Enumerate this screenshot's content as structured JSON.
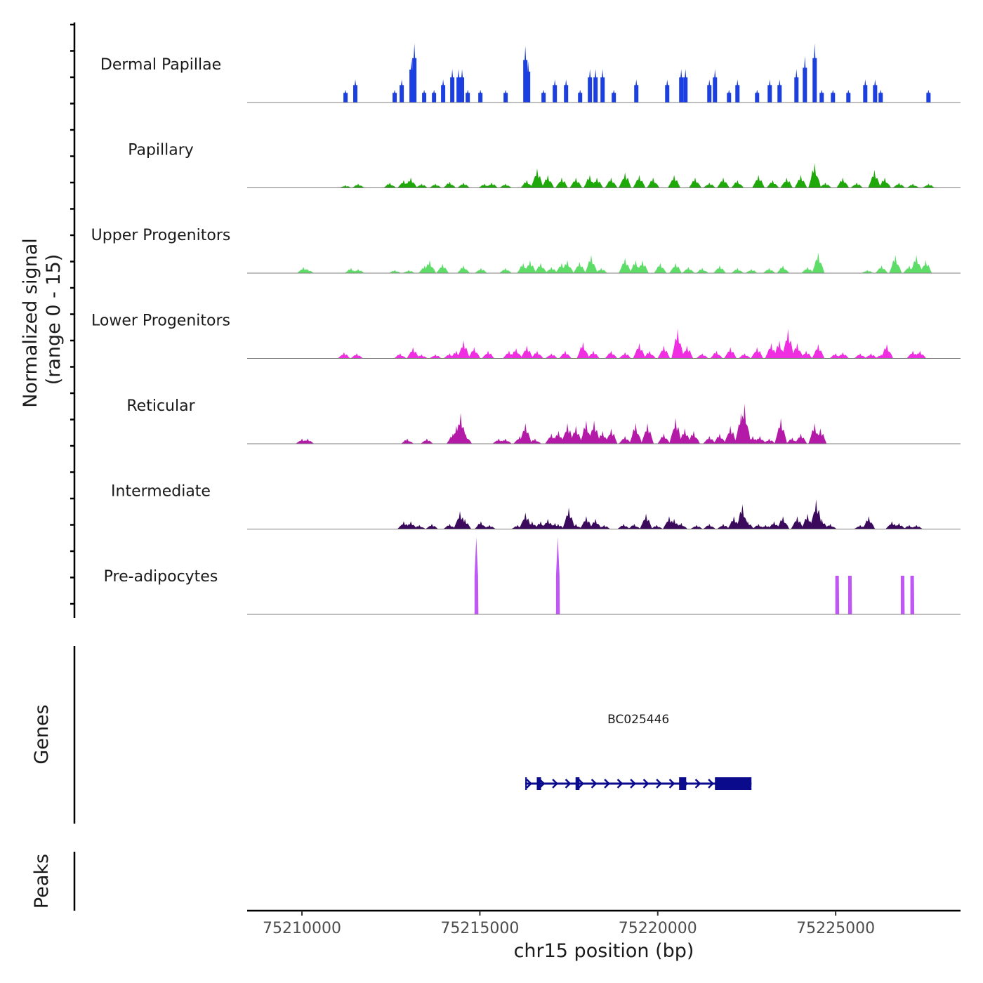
{
  "chart_data": {
    "type": "area",
    "title": "",
    "ylabel": "Normalized signal",
    "ylabel_sub": "(range 0 - 15)",
    "ylim": [
      0,
      15
    ],
    "xlabel": "chr15 position (bp)",
    "xlim": [
      75208460,
      75228510
    ],
    "xticks": [
      75210000,
      75215000,
      75220000,
      75225000
    ],
    "xtick_labels": [
      "75210000",
      "75215000",
      "75220000",
      "75225000"
    ],
    "peak_format": "each peak = [position_bp, signal]",
    "tracks": [
      {
        "name": "Dermal Papillae",
        "color": "#1b3fe0",
        "style": "block",
        "peaks": [
          [
            75211225,
            2.5
          ],
          [
            75211500,
            4.5
          ],
          [
            75212606,
            2.5
          ],
          [
            75212804,
            4.5
          ],
          [
            75213080,
            8.5
          ],
          [
            75213160,
            11.5
          ],
          [
            75213435,
            2.5
          ],
          [
            75213712,
            2.5
          ],
          [
            75213968,
            4.5
          ],
          [
            75214225,
            6.5
          ],
          [
            75214403,
            6.5
          ],
          [
            75214500,
            6.5
          ],
          [
            75214660,
            2.5
          ],
          [
            75215015,
            2.5
          ],
          [
            75215725,
            2.5
          ],
          [
            75216278,
            11
          ],
          [
            75216357,
            8
          ],
          [
            75216791,
            2.5
          ],
          [
            75217107,
            4.5
          ],
          [
            75217423,
            4.5
          ],
          [
            75217818,
            2.5
          ],
          [
            75218094,
            6.5
          ],
          [
            75218252,
            6.5
          ],
          [
            75218450,
            6.5
          ],
          [
            75218765,
            2.5
          ],
          [
            75219397,
            4.5
          ],
          [
            75220266,
            4.5
          ],
          [
            75220660,
            6.5
          ],
          [
            75220779,
            6.5
          ],
          [
            75221450,
            4.5
          ],
          [
            75221608,
            6.5
          ],
          [
            75222003,
            2.5
          ],
          [
            75222240,
            4.5
          ],
          [
            75222792,
            2.5
          ],
          [
            75223148,
            4.5
          ],
          [
            75223424,
            4.5
          ],
          [
            75223898,
            6.5
          ],
          [
            75224135,
            9
          ],
          [
            75224411,
            11.5
          ],
          [
            75224608,
            2.5
          ],
          [
            75224924,
            2.5
          ],
          [
            75225358,
            2.5
          ],
          [
            75225832,
            4.5
          ],
          [
            75226109,
            4.5
          ],
          [
            75226266,
            2.5
          ],
          [
            75227609,
            2.5
          ]
        ]
      },
      {
        "name": "Papillary",
        "color": "#1fa80a",
        "style": "jagged",
        "peaks": [
          [
            75211220,
            0.5
          ],
          [
            75211580,
            0.8
          ],
          [
            75212470,
            1
          ],
          [
            75212860,
            1.5
          ],
          [
            75213060,
            2
          ],
          [
            75213360,
            0.8
          ],
          [
            75213750,
            0.8
          ],
          [
            75214150,
            1.2
          ],
          [
            75214540,
            1
          ],
          [
            75215130,
            0.8
          ],
          [
            75215330,
            1
          ],
          [
            75215720,
            0.8
          ],
          [
            75216320,
            1.5
          ],
          [
            75216610,
            3.8
          ],
          [
            75216910,
            2.5
          ],
          [
            75217300,
            2
          ],
          [
            75217700,
            2
          ],
          [
            75218090,
            2.5
          ],
          [
            75218290,
            2
          ],
          [
            75218690,
            2
          ],
          [
            75219080,
            3
          ],
          [
            75219480,
            2.5
          ],
          [
            75219870,
            2
          ],
          [
            75220460,
            2.5
          ],
          [
            75221050,
            2
          ],
          [
            75221450,
            1
          ],
          [
            75221840,
            2
          ],
          [
            75222240,
            1.5
          ],
          [
            75222830,
            2.5
          ],
          [
            75223230,
            1.5
          ],
          [
            75223620,
            2
          ],
          [
            75224020,
            2.5
          ],
          [
            75224410,
            4.8
          ],
          [
            75224710,
            1
          ],
          [
            75225200,
            2
          ],
          [
            75225590,
            1
          ],
          [
            75226090,
            3.5
          ],
          [
            75226380,
            2
          ],
          [
            75226780,
            1
          ],
          [
            75227170,
            0.8
          ],
          [
            75227610,
            0.8
          ]
        ]
      },
      {
        "name": "Upper Progenitors",
        "color": "#5edc68",
        "style": "jagged",
        "peaks": [
          [
            75210040,
            1.2
          ],
          [
            75210160,
            0.8
          ],
          [
            75211380,
            1
          ],
          [
            75211580,
            0.8
          ],
          [
            75212610,
            0.6
          ],
          [
            75213000,
            0.6
          ],
          [
            75213450,
            1.5
          ],
          [
            75213590,
            2.5
          ],
          [
            75213950,
            1.8
          ],
          [
            75214540,
            1.5
          ],
          [
            75215030,
            1
          ],
          [
            75215720,
            1
          ],
          [
            75216220,
            2
          ],
          [
            75216410,
            2.5
          ],
          [
            75216710,
            2
          ],
          [
            75217010,
            1.2
          ],
          [
            75217300,
            2
          ],
          [
            75217460,
            2.5
          ],
          [
            75217800,
            2.2
          ],
          [
            75218130,
            3.5
          ],
          [
            75218410,
            1
          ],
          [
            75219080,
            3
          ],
          [
            75219380,
            2.5
          ],
          [
            75219570,
            2.5
          ],
          [
            75220070,
            2
          ],
          [
            75220500,
            2
          ],
          [
            75220860,
            1.2
          ],
          [
            75221250,
            1
          ],
          [
            75221740,
            1.5
          ],
          [
            75222240,
            1
          ],
          [
            75222630,
            0.8
          ],
          [
            75223130,
            1
          ],
          [
            75223520,
            1.5
          ],
          [
            75224210,
            1.2
          ],
          [
            75224510,
            4
          ],
          [
            75225890,
            0.6
          ],
          [
            75226290,
            1.5
          ],
          [
            75226680,
            3.5
          ],
          [
            75227070,
            1.5
          ],
          [
            75227270,
            3.5
          ],
          [
            75227530,
            2.5
          ]
        ]
      },
      {
        "name": "Lower Progenitors",
        "color": "#ee2ee0",
        "style": "jagged",
        "peaks": [
          [
            75211180,
            1.2
          ],
          [
            75211540,
            1
          ],
          [
            75212760,
            1
          ],
          [
            75213120,
            2.2
          ],
          [
            75213360,
            0.8
          ],
          [
            75213750,
            0.8
          ],
          [
            75214150,
            1
          ],
          [
            75214340,
            1.5
          ],
          [
            75214540,
            3.5
          ],
          [
            75214840,
            2.2
          ],
          [
            75215230,
            1.5
          ],
          [
            75215820,
            1.5
          ],
          [
            75216020,
            2
          ],
          [
            75216320,
            2.5
          ],
          [
            75216610,
            1.5
          ],
          [
            75217010,
            1
          ],
          [
            75217400,
            1.5
          ],
          [
            75217900,
            3.2
          ],
          [
            75218190,
            1.5
          ],
          [
            75218690,
            1.5
          ],
          [
            75219080,
            1.2
          ],
          [
            75219480,
            3
          ],
          [
            75219770,
            1.5
          ],
          [
            75220170,
            2.5
          ],
          [
            75220560,
            5.8
          ],
          [
            75220820,
            2.5
          ],
          [
            75221250,
            1
          ],
          [
            75221650,
            1.5
          ],
          [
            75222040,
            2.2
          ],
          [
            75222440,
            1
          ],
          [
            75222790,
            2.2
          ],
          [
            75223190,
            3
          ],
          [
            75223420,
            3.5
          ],
          [
            75223660,
            5.8
          ],
          [
            75223920,
            3
          ],
          [
            75224170,
            1.5
          ],
          [
            75224510,
            2.8
          ],
          [
            75225000,
            1
          ],
          [
            75225200,
            1.2
          ],
          [
            75225690,
            1
          ],
          [
            75225990,
            1
          ],
          [
            75226280,
            0.8
          ],
          [
            75226440,
            2.8
          ],
          [
            75227170,
            1.5
          ],
          [
            75227370,
            1.5
          ]
        ]
      },
      {
        "name": "Reticular",
        "color": "#b41aa8",
        "style": "jagged",
        "peaks": [
          [
            75210000,
            1
          ],
          [
            75210160,
            1
          ],
          [
            75212960,
            1
          ],
          [
            75213510,
            1
          ],
          [
            75214240,
            2
          ],
          [
            75214340,
            3.5
          ],
          [
            75214460,
            6
          ],
          [
            75214600,
            2
          ],
          [
            75215530,
            1
          ],
          [
            75215720,
            1
          ],
          [
            75216120,
            1.5
          ],
          [
            75216280,
            4
          ],
          [
            75216550,
            1
          ],
          [
            75217010,
            2
          ],
          [
            75217210,
            2.5
          ],
          [
            75217460,
            4
          ],
          [
            75217700,
            3.5
          ],
          [
            75217990,
            4.5
          ],
          [
            75218210,
            4.5
          ],
          [
            75218450,
            2.5
          ],
          [
            75218690,
            3
          ],
          [
            75219080,
            1.5
          ],
          [
            75219380,
            4
          ],
          [
            75219710,
            4
          ],
          [
            75220170,
            2
          ],
          [
            75220500,
            5
          ],
          [
            75220760,
            3
          ],
          [
            75221010,
            2.5
          ],
          [
            75221450,
            1.5
          ],
          [
            75221740,
            2
          ],
          [
            75222040,
            3.5
          ],
          [
            75222340,
            6
          ],
          [
            75222440,
            7.8
          ],
          [
            75222670,
            1.5
          ],
          [
            75222870,
            1.5
          ],
          [
            75223130,
            1
          ],
          [
            75223460,
            5
          ],
          [
            75223780,
            1.2
          ],
          [
            75224020,
            2
          ],
          [
            75224410,
            4
          ],
          [
            75224570,
            3
          ]
        ]
      },
      {
        "name": "Intermediate",
        "color": "#3b0a5c",
        "style": "jagged",
        "peaks": [
          [
            75212860,
            1.5
          ],
          [
            75213060,
            1.5
          ],
          [
            75213300,
            0.8
          ],
          [
            75213650,
            1
          ],
          [
            75214150,
            1
          ],
          [
            75214440,
            3.5
          ],
          [
            75214580,
            2
          ],
          [
            75215030,
            1.5
          ],
          [
            75215270,
            0.8
          ],
          [
            75216060,
            0.8
          ],
          [
            75216280,
            3.2
          ],
          [
            75216470,
            1.5
          ],
          [
            75216710,
            1.5
          ],
          [
            75216910,
            2
          ],
          [
            75217110,
            1.2
          ],
          [
            75217200,
            1
          ],
          [
            75217500,
            4.2
          ],
          [
            75217700,
            1
          ],
          [
            75217990,
            2.5
          ],
          [
            75218250,
            2
          ],
          [
            75218490,
            0.8
          ],
          [
            75219040,
            1
          ],
          [
            75219340,
            1
          ],
          [
            75219670,
            3
          ],
          [
            75219970,
            0.8
          ],
          [
            75220320,
            2.5
          ],
          [
            75220460,
            2
          ],
          [
            75220660,
            1.2
          ],
          [
            75221090,
            0.8
          ],
          [
            75221450,
            1
          ],
          [
            75221840,
            1
          ],
          [
            75222140,
            2.5
          ],
          [
            75222380,
            4.8
          ],
          [
            75222530,
            1.5
          ],
          [
            75222830,
            1
          ],
          [
            75223030,
            0.8
          ],
          [
            75223270,
            1.5
          ],
          [
            75223520,
            2.5
          ],
          [
            75223920,
            2.5
          ],
          [
            75224210,
            3
          ],
          [
            75224450,
            5.8
          ],
          [
            75224610,
            2
          ],
          [
            75224850,
            1
          ],
          [
            75225690,
            0.8
          ],
          [
            75225930,
            2.5
          ],
          [
            75226580,
            1.5
          ],
          [
            75226780,
            1.2
          ],
          [
            75227070,
            0.8
          ],
          [
            75227270,
            0.8
          ]
        ]
      },
      {
        "name": "Pre-adipocytes",
        "color": "#bf57f5",
        "style": "spike",
        "peaks": [
          [
            75214900,
            7.5,
            15
          ],
          [
            75217190,
            7.5,
            15
          ],
          [
            75225040,
            7.5,
            7.5
          ],
          [
            75225400,
            7.5,
            7.5
          ],
          [
            75226880,
            7.5,
            7.5
          ],
          [
            75227150,
            7.5,
            7.5
          ]
        ]
      }
    ],
    "genes": {
      "label": "Genes",
      "items": [
        {
          "name": "BC025446",
          "strand": "+",
          "start": 75216277,
          "end": 75222634,
          "color": "#0a0a8c",
          "exons": [
            [
              75216277,
              75216320
            ],
            [
              75216600,
              75216720
            ],
            [
              75217690,
              75217800
            ],
            [
              75220600,
              75220800
            ],
            [
              75221607,
              75222634
            ]
          ]
        }
      ]
    },
    "peaks_track": {
      "label": "Peaks",
      "items": []
    }
  }
}
